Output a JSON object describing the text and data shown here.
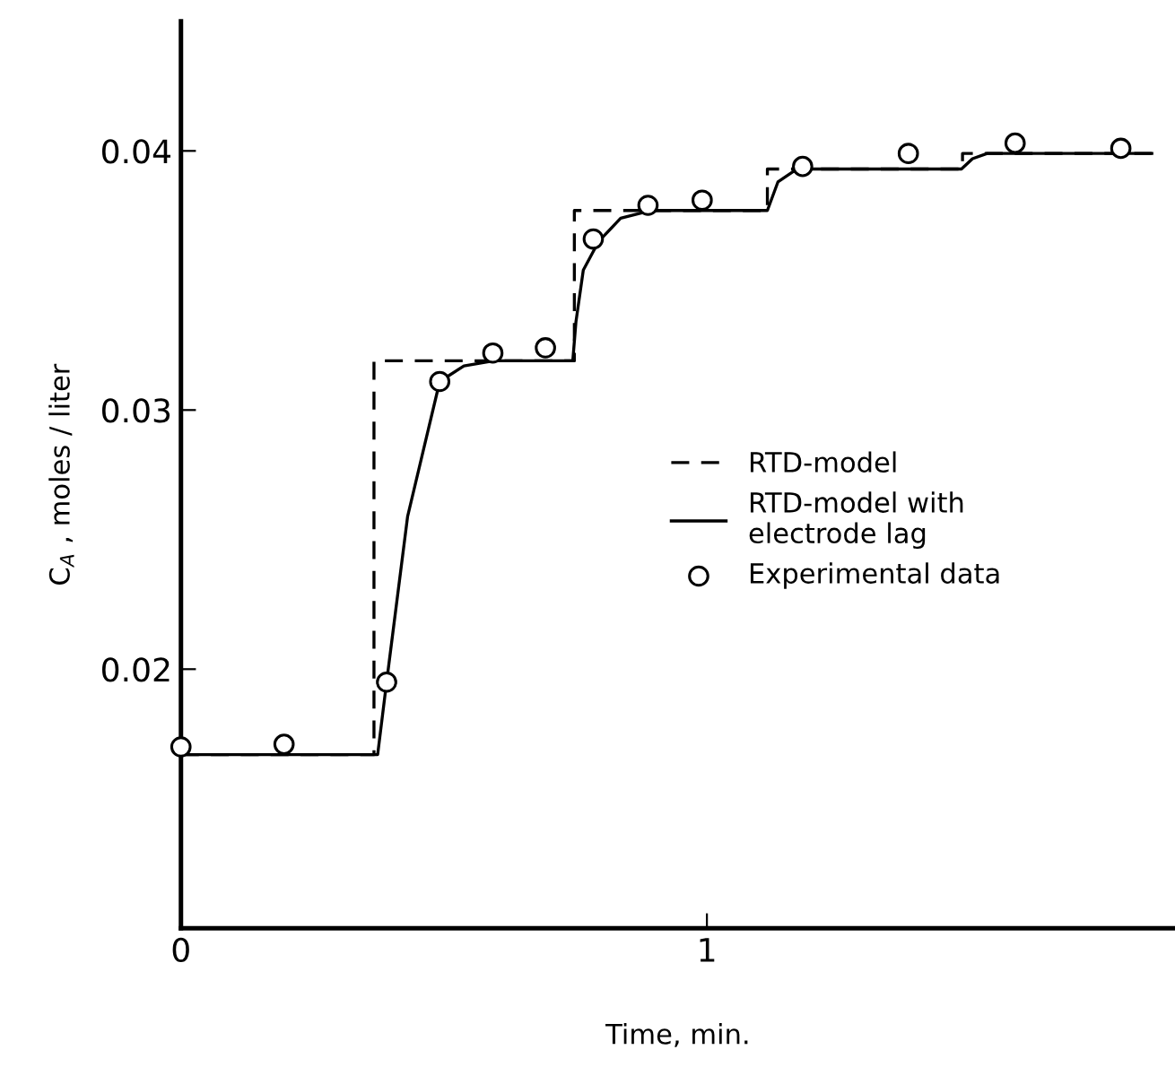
{
  "chart_data": {
    "type": "line",
    "xlabel": "Time, min.",
    "ylabel": "C$_{A}$ , moles / liter",
    "xlim": [
      0,
      1.89
    ],
    "ylim": [
      0.01,
      0.045
    ],
    "xticks": [
      0,
      1
    ],
    "yticks": [
      0.02,
      0.03,
      0.04
    ],
    "grid": false,
    "legend": "right",
    "series": [
      {
        "name": "RTD-model",
        "color": "#000000",
        "line_style": "dashed",
        "marker": "none",
        "x": [
          0,
          0.367,
          0.367,
          0.748,
          0.748,
          1.115,
          1.115,
          1.486,
          1.486,
          1.846
        ],
        "values": [
          0.0167,
          0.0167,
          0.0319,
          0.0319,
          0.0377,
          0.0377,
          0.0393,
          0.0393,
          0.0399,
          0.0399
        ]
      },
      {
        "name": "RTD-model with\nelectrode lag",
        "color": "#000000",
        "line_style": "solid",
        "marker": "none",
        "x": [
          0,
          0.374,
          0.391,
          0.431,
          0.492,
          0.538,
          0.595,
          0.745,
          0.751,
          0.765,
          0.794,
          0.836,
          0.893,
          1.115,
          1.135,
          1.164,
          1.192,
          1.484,
          1.505,
          1.533,
          1.846
        ],
        "values": [
          0.0167,
          0.0167,
          0.0195,
          0.0259,
          0.0311,
          0.0317,
          0.0319,
          0.0319,
          0.0334,
          0.0354,
          0.0365,
          0.0374,
          0.0377,
          0.0377,
          0.0388,
          0.0392,
          0.0393,
          0.0393,
          0.0397,
          0.0399,
          0.0399
        ]
      },
      {
        "name": "Experimental data",
        "type": "scatter",
        "color": "#000000",
        "marker": "circle",
        "x": [
          0,
          0.196,
          0.391,
          0.492,
          0.593,
          0.693,
          0.784,
          0.888,
          0.991,
          1.182,
          1.383,
          1.586,
          1.787
        ],
        "values": [
          0.017,
          0.0171,
          0.0195,
          0.0311,
          0.0322,
          0.0324,
          0.0366,
          0.0379,
          0.0381,
          0.0394,
          0.0399,
          0.0403,
          0.0401
        ]
      }
    ]
  }
}
